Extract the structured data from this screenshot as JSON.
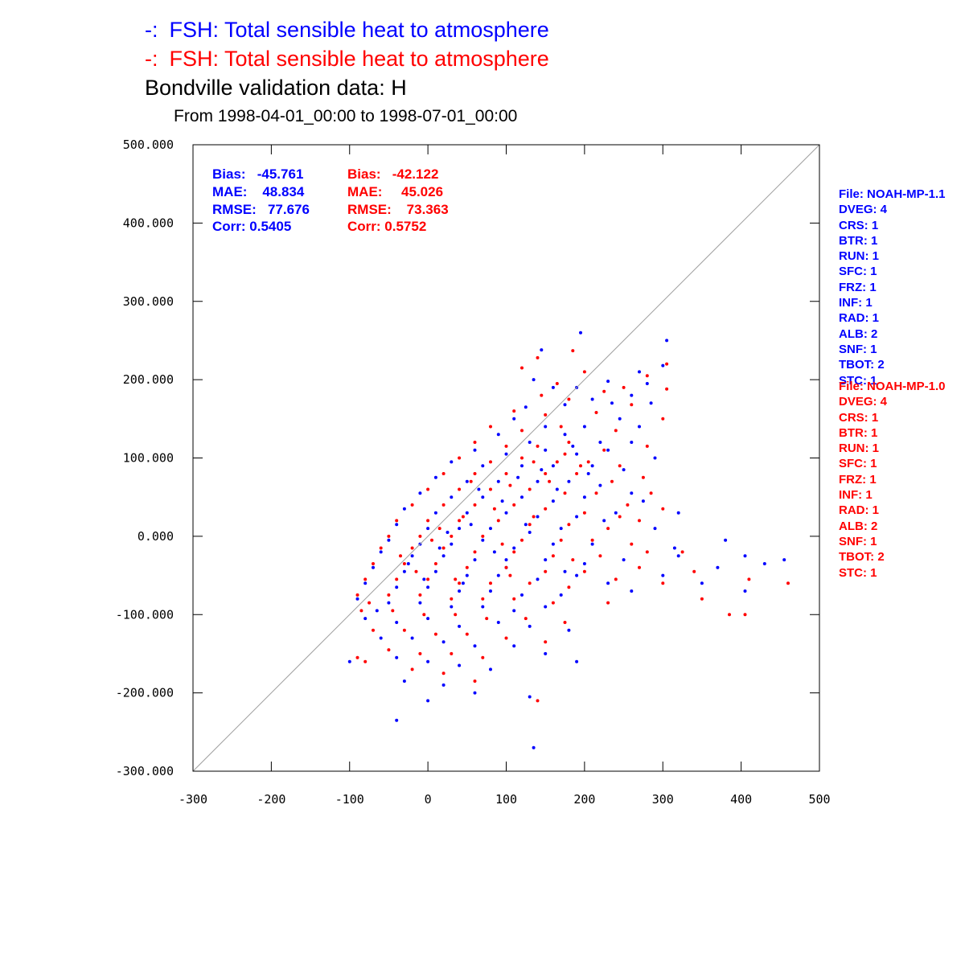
{
  "legend": {
    "blue": {
      "mark": "-:",
      "text": "FSH: Total sensible heat to atmosphere",
      "color": "#0000ff"
    },
    "red": {
      "mark": "-:",
      "text": "FSH: Total sensible heat to atmosphere",
      "color": "#ff0000"
    }
  },
  "title": "Bondville validation data:  H",
  "period": "From 1998-04-01_00:00 to 1998-07-01_00:00",
  "stats": {
    "blue": {
      "bias": "Bias:   -45.761",
      "mae": "MAE:    48.834",
      "rmse": "RMSE:   77.676",
      "corr": "Corr: 0.5405"
    },
    "red": {
      "bias": "Bias:   -42.122",
      "mae": "MAE:     45.026",
      "rmse": "RMSE:    73.363",
      "corr": "Corr: 0.5752"
    }
  },
  "config_blue": [
    "File: NOAH-MP-1.1",
    "DVEG: 4",
    "CRS: 1",
    "BTR: 1",
    "RUN: 1",
    "SFC: 1",
    "FRZ: 1",
    "INF: 1",
    "RAD: 1",
    "ALB: 2",
    "SNF: 1",
    "TBOT: 2",
    "STC: 1"
  ],
  "config_red": [
    "File: NOAH-MP-1.0",
    "DVEG: 4",
    "CRS: 1",
    "BTR: 1",
    "RUN: 1",
    "SFC: 1",
    "FRZ: 1",
    "INF: 1",
    "RAD: 1",
    "ALB: 2",
    "SNF: 1",
    "TBOT: 2",
    "STC: 1"
  ],
  "chart_data": {
    "type": "scatter",
    "xlim": [
      -300,
      500
    ],
    "ylim": [
      -300,
      500
    ],
    "x_ticks": [
      "-300",
      "-200",
      "-100",
      "0",
      "100",
      "200",
      "300",
      "400",
      "500"
    ],
    "y_ticks": [
      "-300.000",
      "-200.000",
      "-100.000",
      "0.000",
      "100.000",
      "200.000",
      "300.000",
      "400.000",
      "500.000"
    ],
    "one_to_one_line": true,
    "grid": false,
    "series": [
      {
        "color": "#0000ff",
        "points": [
          [
            195,
            260
          ],
          [
            305,
            250
          ],
          [
            145,
            238
          ],
          [
            300,
            218
          ],
          [
            270,
            210
          ],
          [
            135,
            200
          ],
          [
            230,
            198
          ],
          [
            190,
            190
          ],
          [
            280,
            195
          ],
          [
            160,
            190
          ],
          [
            260,
            180
          ],
          [
            210,
            175
          ],
          [
            235,
            170
          ],
          [
            285,
            170
          ],
          [
            175,
            168
          ],
          [
            125,
            165
          ],
          [
            110,
            150
          ],
          [
            150,
            140
          ],
          [
            200,
            140
          ],
          [
            245,
            150
          ],
          [
            270,
            140
          ],
          [
            90,
            130
          ],
          [
            130,
            120
          ],
          [
            175,
            130
          ],
          [
            220,
            120
          ],
          [
            260,
            120
          ],
          [
            60,
            110
          ],
          [
            100,
            105
          ],
          [
            150,
            110
          ],
          [
            190,
            105
          ],
          [
            230,
            110
          ],
          [
            290,
            100
          ],
          [
            30,
            95
          ],
          [
            70,
            90
          ],
          [
            120,
            90
          ],
          [
            160,
            90
          ],
          [
            210,
            90
          ],
          [
            250,
            85
          ],
          [
            10,
            75
          ],
          [
            50,
            70
          ],
          [
            90,
            70
          ],
          [
            140,
            70
          ],
          [
            180,
            70
          ],
          [
            220,
            65
          ],
          [
            -10,
            55
          ],
          [
            30,
            50
          ],
          [
            70,
            50
          ],
          [
            120,
            50
          ],
          [
            160,
            45
          ],
          [
            200,
            50
          ],
          [
            260,
            55
          ],
          [
            -30,
            35
          ],
          [
            10,
            30
          ],
          [
            50,
            30
          ],
          [
            100,
            30
          ],
          [
            140,
            25
          ],
          [
            190,
            25
          ],
          [
            240,
            30
          ],
          [
            320,
            30
          ],
          [
            -40,
            15
          ],
          [
            0,
            10
          ],
          [
            40,
            10
          ],
          [
            80,
            10
          ],
          [
            130,
            5
          ],
          [
            170,
            10
          ],
          [
            290,
            10
          ],
          [
            -50,
            -5
          ],
          [
            -10,
            -10
          ],
          [
            30,
            -10
          ],
          [
            70,
            -5
          ],
          [
            110,
            -15
          ],
          [
            160,
            -10
          ],
          [
            210,
            -10
          ],
          [
            380,
            -5
          ],
          [
            -60,
            -20
          ],
          [
            -20,
            -25
          ],
          [
            20,
            -25
          ],
          [
            60,
            -30
          ],
          [
            100,
            -30
          ],
          [
            150,
            -30
          ],
          [
            200,
            -35
          ],
          [
            250,
            -30
          ],
          [
            320,
            -25
          ],
          [
            405,
            -25
          ],
          [
            455,
            -30
          ],
          [
            -70,
            -40
          ],
          [
            -30,
            -45
          ],
          [
            10,
            -45
          ],
          [
            50,
            -50
          ],
          [
            90,
            -50
          ],
          [
            140,
            -55
          ],
          [
            190,
            -50
          ],
          [
            230,
            -60
          ],
          [
            300,
            -50
          ],
          [
            370,
            -40
          ],
          [
            430,
            -35
          ],
          [
            -80,
            -60
          ],
          [
            -40,
            -65
          ],
          [
            0,
            -65
          ],
          [
            40,
            -70
          ],
          [
            80,
            -70
          ],
          [
            120,
            -75
          ],
          [
            170,
            -75
          ],
          [
            260,
            -70
          ],
          [
            350,
            -60
          ],
          [
            405,
            -70
          ],
          [
            -90,
            -80
          ],
          [
            -50,
            -85
          ],
          [
            -10,
            -85
          ],
          [
            30,
            -90
          ],
          [
            70,
            -90
          ],
          [
            110,
            -95
          ],
          [
            150,
            -90
          ],
          [
            -80,
            -105
          ],
          [
            -40,
            -110
          ],
          [
            0,
            -105
          ],
          [
            40,
            -115
          ],
          [
            90,
            -110
          ],
          [
            130,
            -115
          ],
          [
            180,
            -120
          ],
          [
            -60,
            -130
          ],
          [
            -20,
            -130
          ],
          [
            20,
            -135
          ],
          [
            60,
            -140
          ],
          [
            110,
            -140
          ],
          [
            150,
            -150
          ],
          [
            190,
            -160
          ],
          [
            -40,
            -155
          ],
          [
            0,
            -160
          ],
          [
            40,
            -165
          ],
          [
            80,
            -170
          ],
          [
            -100,
            -160
          ],
          [
            -30,
            -185
          ],
          [
            20,
            -190
          ],
          [
            60,
            -200
          ],
          [
            -40,
            -235
          ],
          [
            0,
            -210
          ],
          [
            130,
            -205
          ],
          [
            135,
            -270
          ],
          [
            100,
            -40
          ],
          [
            25,
            5
          ],
          [
            -25,
            -35
          ],
          [
            65,
            60
          ],
          [
            115,
            75
          ],
          [
            165,
            60
          ],
          [
            205,
            80
          ],
          [
            85,
            -20
          ],
          [
            45,
            -60
          ],
          [
            -5,
            -55
          ],
          [
            125,
            15
          ],
          [
            175,
            -45
          ],
          [
            225,
            20
          ],
          [
            275,
            45
          ],
          [
            315,
            -15
          ],
          [
            -65,
            -95
          ],
          [
            15,
            -15
          ],
          [
            55,
            15
          ],
          [
            95,
            45
          ],
          [
            145,
            85
          ],
          [
            185,
            115
          ]
        ]
      },
      {
        "color": "#ff0000",
        "points": [
          [
            185,
            237
          ],
          [
            140,
            228
          ],
          [
            305,
            220
          ],
          [
            120,
            215
          ],
          [
            200,
            210
          ],
          [
            280,
            205
          ],
          [
            165,
            195
          ],
          [
            250,
            190
          ],
          [
            225,
            185
          ],
          [
            305,
            188
          ],
          [
            145,
            180
          ],
          [
            180,
            175
          ],
          [
            260,
            168
          ],
          [
            110,
            160
          ],
          [
            150,
            155
          ],
          [
            215,
            158
          ],
          [
            300,
            150
          ],
          [
            80,
            140
          ],
          [
            120,
            135
          ],
          [
            170,
            140
          ],
          [
            240,
            135
          ],
          [
            60,
            120
          ],
          [
            100,
            115
          ],
          [
            140,
            115
          ],
          [
            180,
            120
          ],
          [
            225,
            110
          ],
          [
            280,
            115
          ],
          [
            40,
            100
          ],
          [
            80,
            95
          ],
          [
            120,
            100
          ],
          [
            165,
            95
          ],
          [
            205,
            95
          ],
          [
            245,
            90
          ],
          [
            20,
            80
          ],
          [
            60,
            80
          ],
          [
            100,
            80
          ],
          [
            150,
            80
          ],
          [
            190,
            80
          ],
          [
            235,
            70
          ],
          [
            275,
            75
          ],
          [
            0,
            60
          ],
          [
            40,
            60
          ],
          [
            80,
            60
          ],
          [
            130,
            60
          ],
          [
            175,
            55
          ],
          [
            215,
            55
          ],
          [
            255,
            40
          ],
          [
            -20,
            40
          ],
          [
            20,
            40
          ],
          [
            60,
            40
          ],
          [
            110,
            40
          ],
          [
            150,
            35
          ],
          [
            200,
            30
          ],
          [
            300,
            35
          ],
          [
            -40,
            20
          ],
          [
            0,
            20
          ],
          [
            40,
            20
          ],
          [
            90,
            20
          ],
          [
            130,
            15
          ],
          [
            180,
            15
          ],
          [
            230,
            10
          ],
          [
            270,
            20
          ],
          [
            -50,
            0
          ],
          [
            -10,
            0
          ],
          [
            30,
            0
          ],
          [
            70,
            0
          ],
          [
            120,
            -5
          ],
          [
            170,
            -5
          ],
          [
            210,
            -5
          ],
          [
            260,
            -10
          ],
          [
            -60,
            -15
          ],
          [
            -20,
            -15
          ],
          [
            20,
            -15
          ],
          [
            60,
            -20
          ],
          [
            110,
            -20
          ],
          [
            160,
            -25
          ],
          [
            220,
            -25
          ],
          [
            280,
            -20
          ],
          [
            -70,
            -35
          ],
          [
            -30,
            -35
          ],
          [
            10,
            -35
          ],
          [
            50,
            -40
          ],
          [
            100,
            -40
          ],
          [
            150,
            -45
          ],
          [
            200,
            -45
          ],
          [
            270,
            -40
          ],
          [
            340,
            -45
          ],
          [
            -80,
            -55
          ],
          [
            -40,
            -55
          ],
          [
            0,
            -55
          ],
          [
            40,
            -60
          ],
          [
            80,
            -60
          ],
          [
            130,
            -60
          ],
          [
            180,
            -65
          ],
          [
            240,
            -55
          ],
          [
            300,
            -60
          ],
          [
            410,
            -55
          ],
          [
            460,
            -60
          ],
          [
            -90,
            -75
          ],
          [
            -50,
            -75
          ],
          [
            -10,
            -75
          ],
          [
            30,
            -80
          ],
          [
            70,
            -80
          ],
          [
            110,
            -80
          ],
          [
            160,
            -85
          ],
          [
            230,
            -85
          ],
          [
            350,
            -80
          ],
          [
            385,
            -100
          ],
          [
            405,
            -100
          ],
          [
            -85,
            -95
          ],
          [
            -45,
            -95
          ],
          [
            -5,
            -100
          ],
          [
            35,
            -100
          ],
          [
            75,
            -105
          ],
          [
            125,
            -105
          ],
          [
            175,
            -110
          ],
          [
            -70,
            -120
          ],
          [
            -30,
            -120
          ],
          [
            10,
            -125
          ],
          [
            50,
            -125
          ],
          [
            100,
            -130
          ],
          [
            150,
            -135
          ],
          [
            -90,
            -155
          ],
          [
            -50,
            -145
          ],
          [
            -10,
            -150
          ],
          [
            30,
            -150
          ],
          [
            70,
            -155
          ],
          [
            -80,
            -160
          ],
          [
            -20,
            -170
          ],
          [
            20,
            -175
          ],
          [
            60,
            -185
          ],
          [
            140,
            -210
          ],
          [
            105,
            -50
          ],
          [
            15,
            10
          ],
          [
            -35,
            -25
          ],
          [
            55,
            70
          ],
          [
            105,
            65
          ],
          [
            155,
            70
          ],
          [
            195,
            90
          ],
          [
            95,
            -10
          ],
          [
            35,
            -55
          ],
          [
            -15,
            -45
          ],
          [
            135,
            25
          ],
          [
            185,
            -30
          ],
          [
            245,
            25
          ],
          [
            285,
            55
          ],
          [
            325,
            -20
          ],
          [
            -75,
            -85
          ],
          [
            5,
            -5
          ],
          [
            45,
            25
          ],
          [
            85,
            35
          ],
          [
            135,
            95
          ],
          [
            175,
            105
          ]
        ]
      }
    ]
  }
}
